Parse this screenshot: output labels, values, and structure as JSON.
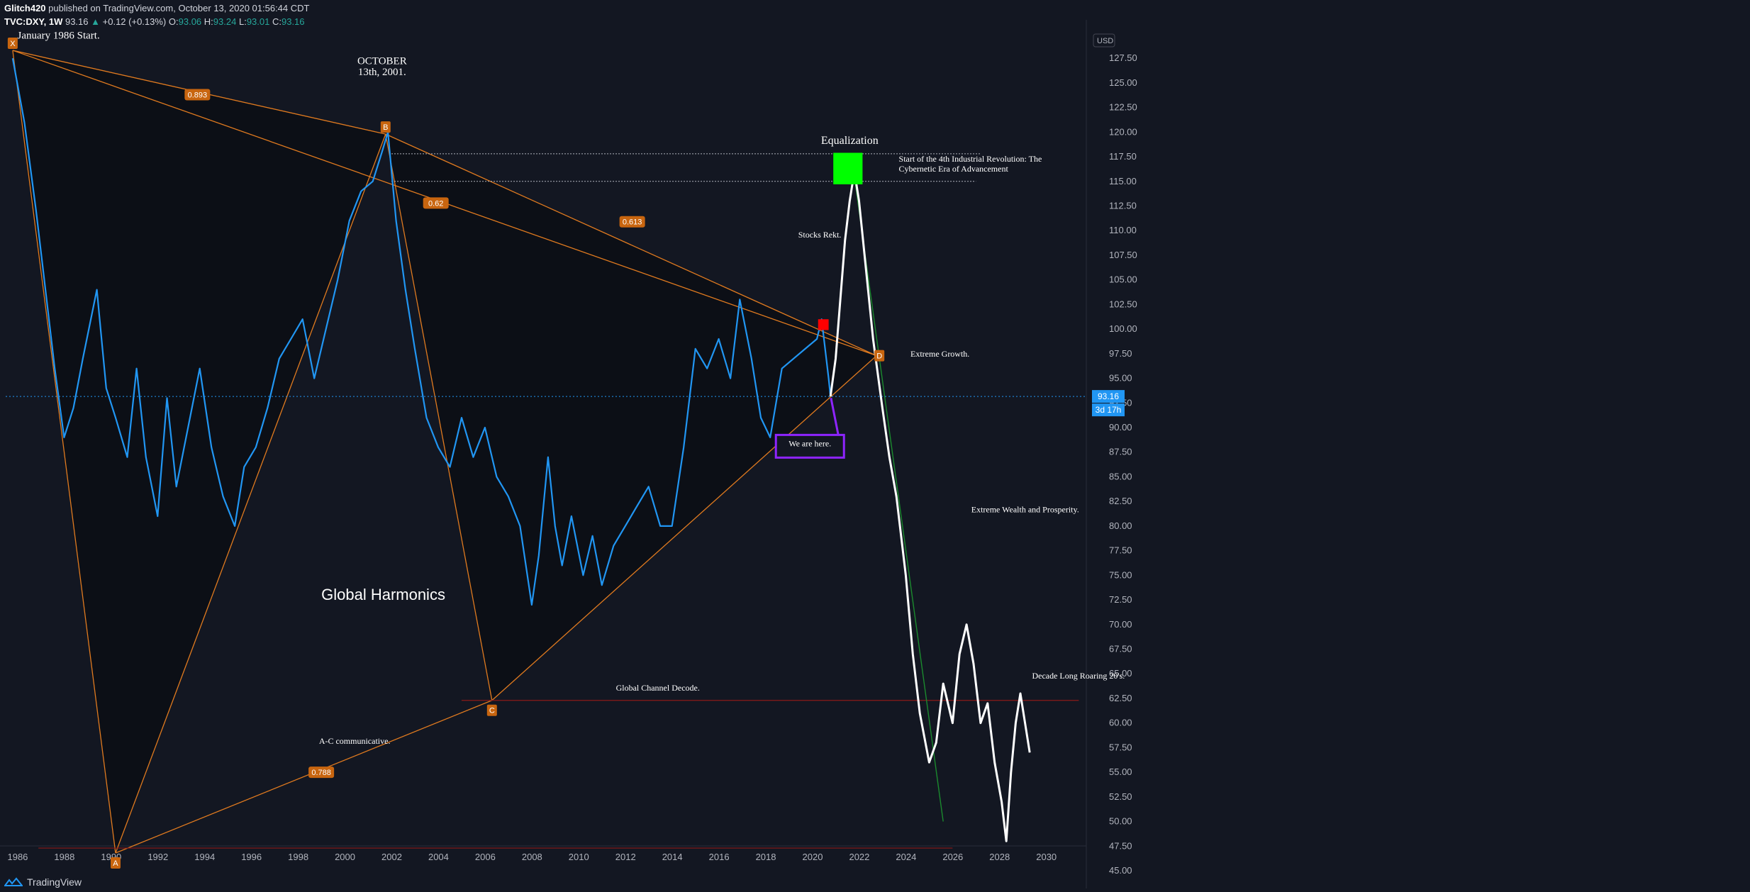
{
  "header": {
    "line1_author": "Glitch420",
    "line1_rest": " published on TradingView.com, October 13, 2020 01:56:44 CDT",
    "symbol": "TVC:DXY, 1W",
    "price": "93.16",
    "change": "+0.12 (+0.13%)",
    "o_label": "O:",
    "o_val": "93.06",
    "h_label": "H:",
    "h_val": "93.24",
    "l_label": "L:",
    "l_val": "93.01",
    "c_label": "C:",
    "c_val": "93.16"
  },
  "footer": {
    "brand": "TradingView"
  },
  "colors": {
    "background": "#131722",
    "price_line": "#2196f3",
    "projection": "#ffffff",
    "pattern": "#e07a1f",
    "label_bg": "#c8650f",
    "green_box": "#00ff00",
    "red_box": "#ff0000",
    "callout": "#8e24ff",
    "current_price": "#2196f3"
  },
  "chart_data": {
    "type": "line",
    "title": "",
    "xlabel": "",
    "ylabel": "USD",
    "currency": "USD",
    "xlim": [
      1985.5,
      2031.6
    ],
    "ylim": [
      43.2,
      131.4
    ],
    "x_ticks": [
      "1986",
      "1988",
      "1990",
      "1992",
      "1994",
      "1996",
      "1998",
      "2000",
      "2002",
      "2004",
      "2006",
      "2008",
      "2010",
      "2012",
      "2014",
      "2016",
      "2018",
      "2020",
      "2022",
      "2024",
      "2026",
      "2028",
      "2030"
    ],
    "y_ticks": [
      "127.50",
      "125.00",
      "122.50",
      "120.00",
      "117.50",
      "115.00",
      "112.50",
      "110.00",
      "107.50",
      "105.00",
      "102.50",
      "100.00",
      "97.50",
      "95.00",
      "92.50",
      "90.00",
      "87.50",
      "85.00",
      "82.50",
      "80.00",
      "77.50",
      "75.00",
      "72.50",
      "70.00",
      "67.50",
      "65.00",
      "62.50",
      "60.00",
      "57.50",
      "55.00",
      "52.50",
      "50.00",
      "47.50",
      "45.00"
    ],
    "current_price": {
      "value": 93.16,
      "label": "93.16",
      "countdown": "3d 17h"
    },
    "series": [
      {
        "name": "",
        "x": [
          1985.8,
          1986.3,
          1986.8,
          1987.2,
          1987.6,
          1988.0,
          1988.4,
          1988.8,
          1989.4,
          1989.8,
          1990.2,
          1990.7,
          1991.1,
          1991.5,
          1992.0,
          1992.4,
          1992.8,
          1993.3,
          1993.8,
          1994.3,
          1994.8,
          1995.3,
          1995.7,
          1996.2,
          1996.7,
          1997.2,
          1997.7,
          1998.2,
          1998.7,
          1999.2,
          1999.7,
          2000.2,
          2000.7,
          2001.2,
          2001.6,
          2001.85,
          2002.2,
          2002.6,
          2003.0,
          2003.5,
          2004.0,
          2004.5,
          2005.0,
          2005.5,
          2006.0,
          2006.5,
          2007.0,
          2007.5,
          2008.0,
          2008.3,
          2008.7,
          2009.0,
          2009.3,
          2009.7,
          2010.2,
          2010.6,
          2011.0,
          2011.5,
          2012.0,
          2012.5,
          2013.0,
          2013.5,
          2014.0,
          2014.5,
          2015.0,
          2015.5,
          2016.0,
          2016.5,
          2016.9,
          2017.4,
          2017.8,
          2018.2,
          2018.7,
          2019.2,
          2019.7,
          2020.2,
          2020.4,
          2020.7,
          2020.78
        ],
        "y": [
          127.5,
          121,
          112,
          104,
          96,
          89,
          92,
          97,
          104,
          94,
          91,
          87,
          96,
          87,
          81,
          93,
          84,
          90,
          96,
          88,
          83,
          80,
          86,
          88,
          92,
          97,
          99,
          101,
          95,
          100,
          105,
          111,
          114,
          115,
          118,
          120,
          111,
          104,
          98,
          91,
          88,
          86,
          91,
          87,
          90,
          85,
          83,
          80,
          72,
          77,
          87,
          80,
          76,
          81,
          75,
          79,
          74,
          78,
          80,
          82,
          84,
          80,
          80,
          88,
          98,
          96,
          99,
          95,
          103,
          97,
          91,
          89,
          96,
          97,
          98,
          99,
          101,
          95,
          93.16
        ]
      },
      {
        "name": "",
        "x": [
          2020.78,
          2021.0,
          2021.2,
          2021.4,
          2021.6,
          2021.8,
          2022.0,
          2022.3,
          2022.6,
          2023.0,
          2023.3,
          2023.6,
          2024.0,
          2024.3,
          2024.6,
          2025.0,
          2025.3,
          2025.6,
          2026.0,
          2026.3,
          2026.6,
          2026.9,
          2027.2,
          2027.5,
          2027.8,
          2028.1,
          2028.3,
          2028.5,
          2028.7,
          2028.9,
          2029.1,
          2029.3
        ],
        "y": [
          93.16,
          97,
          103,
          109,
          113,
          116,
          113,
          106,
          99,
          92,
          87,
          83,
          75,
          67,
          61,
          56,
          58,
          64,
          60,
          67,
          70,
          66,
          60,
          62,
          56,
          52,
          48,
          55,
          60,
          63,
          60,
          57
        ]
      }
    ],
    "harmonic_pattern": {
      "points": [
        {
          "label": "X",
          "x": 1985.8,
          "y": 128.3
        },
        {
          "label": "A",
          "x": 1990.2,
          "y": 46.8
        },
        {
          "label": "B",
          "x": 2001.75,
          "y": 119.8
        },
        {
          "label": "C",
          "x": 2006.3,
          "y": 62.3
        },
        {
          "label": "D",
          "x": 2022.75,
          "y": 97.3
        }
      ],
      "ratios": [
        {
          "label": "0.893",
          "x": 1993.7,
          "y": 123.8
        },
        {
          "label": "0.62",
          "x": 2003.9,
          "y": 112.8
        },
        {
          "label": "0.613",
          "x": 2012.3,
          "y": 110.9
        },
        {
          "label": "0.788",
          "x": 1999.0,
          "y": 55.0
        }
      ]
    },
    "annotations": [
      {
        "text": "January 1986 Start.",
        "x": 1986.0,
        "y": 129.5
      },
      {
        "text": "OCTOBER",
        "x": 2001.6,
        "y": 126.9
      },
      {
        "text": "13th, 2001.",
        "x": 2001.6,
        "y": 125.8
      },
      {
        "text": "Global Harmonics",
        "x": 1999.0,
        "y": 72.5
      },
      {
        "text": "A-C communicative.",
        "x": 1998.9,
        "y": 57.9
      },
      {
        "text": "Global Channel Decode.",
        "x": 2011.6,
        "y": 63.3
      },
      {
        "text": "Equalization",
        "x": 2021.6,
        "y": 118.8
      },
      {
        "text": "Start of the 4th Industrial Revolution: The",
        "x": 2023.7,
        "y": 117.0
      },
      {
        "text": "Cybernetic Era of Advancement",
        "x": 2023.7,
        "y": 116.0
      },
      {
        "text": "Stocks Rekt.",
        "x": 2019.4,
        "y": 109.3
      },
      {
        "text": "Extreme Growth.",
        "x": 2024.2,
        "y": 97.2
      },
      {
        "text": "We are here.",
        "x": 2019.9,
        "y": 88.1
      },
      {
        "text": "Extreme Wealth and Prosperity.",
        "x": 2026.8,
        "y": 81.4
      },
      {
        "text": "Decade Long Roaring 20's.",
        "x": 2029.4,
        "y": 64.5
      }
    ]
  }
}
